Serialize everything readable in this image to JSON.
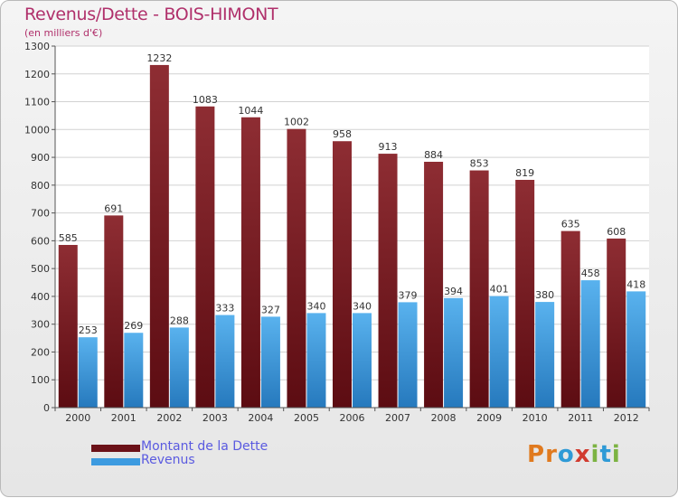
{
  "chart_data": {
    "type": "bar",
    "title": "Revenus/Dette - BOIS-HIMONT",
    "subtitle": "(en milliers d'€)",
    "xlabel": "",
    "ylabel": "",
    "ylim": [
      0,
      1300
    ],
    "yticks": [
      0,
      100,
      200,
      300,
      400,
      500,
      600,
      700,
      800,
      900,
      1000,
      1100,
      1200,
      1300
    ],
    "grid": true,
    "categories": [
      "2000",
      "2001",
      "2002",
      "2003",
      "2004",
      "2005",
      "2006",
      "2007",
      "2008",
      "2009",
      "2010",
      "2011",
      "2012"
    ],
    "series": [
      {
        "name": "Montant de la Dette",
        "color": "#7b1a22",
        "values": [
          585,
          691,
          1232,
          1083,
          1044,
          1002,
          958,
          913,
          884,
          853,
          819,
          635,
          608
        ]
      },
      {
        "name": "Revenus",
        "color": "#3d9be0",
        "values": [
          253,
          269,
          288,
          333,
          327,
          340,
          340,
          379,
          394,
          401,
          380,
          458,
          418
        ]
      }
    ],
    "legend_position": "bottom-left"
  },
  "branding": {
    "logo_letters": [
      "P",
      "r",
      "o",
      "x",
      "i",
      "t",
      "i"
    ],
    "logo_colors": [
      "#e07a1f",
      "#e07a1f",
      "#2e9ad6",
      "#d13b2f",
      "#7cb342",
      "#2e9ad6",
      "#7cb342"
    ]
  },
  "colors": {
    "title": "#b0306b",
    "legend_text": "#5a5ae0",
    "axis_text": "#333333"
  }
}
